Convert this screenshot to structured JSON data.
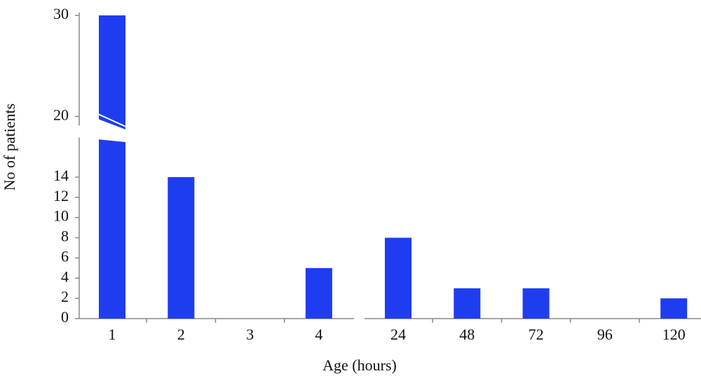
{
  "chart_data": {
    "type": "bar",
    "x_label": "Age (hours)",
    "y_label": "No of patients",
    "categories": [
      "1",
      "2",
      "3",
      "4",
      "24",
      "48",
      "72",
      "96",
      "120"
    ],
    "values": [
      30,
      14,
      0,
      5,
      8,
      3,
      3,
      0,
      2
    ],
    "color": "#1f3df0",
    "ylim": [
      0,
      30
    ],
    "yticks": [
      0,
      2,
      4,
      6,
      8,
      10,
      12,
      14,
      20,
      30
    ]
  }
}
